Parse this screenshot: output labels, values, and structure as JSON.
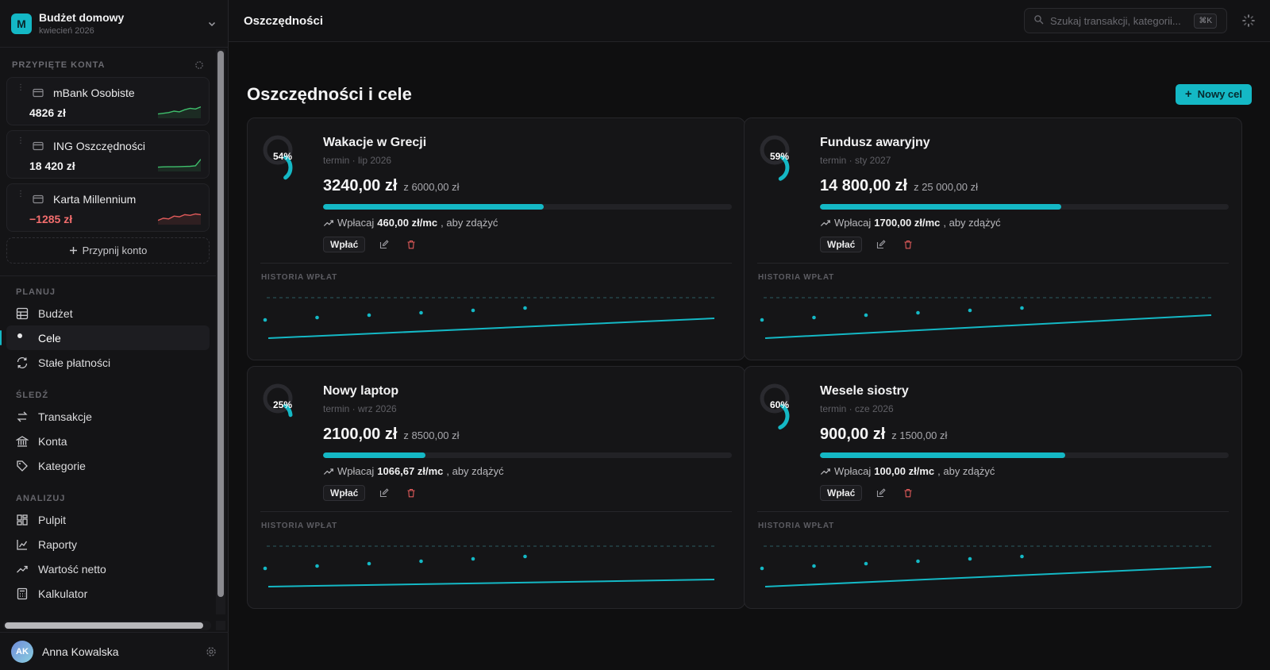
{
  "workspace": {
    "initial": "M",
    "name": "Budżet domowy",
    "period": "kwiecień 2026"
  },
  "sidebar": {
    "pinned_header": "PRZYPIĘTE KONTA",
    "accounts": [
      {
        "name": "mBank Osobiste",
        "balance": "4826 zł",
        "negative": false,
        "trend_color": "#3fbf6c",
        "spark": [
          0.3,
          0.35,
          0.4,
          0.5,
          0.45,
          0.6,
          0.7,
          0.65,
          0.8
        ]
      },
      {
        "name": "ING Oszczędności",
        "balance": "18 420 zł",
        "negative": false,
        "trend_color": "#3fbf6c",
        "spark": [
          0.3,
          0.32,
          0.33,
          0.33,
          0.34,
          0.35,
          0.36,
          0.4,
          0.85
        ]
      },
      {
        "name": "Karta Millennium",
        "balance": "−1285 zł",
        "negative": true,
        "trend_color": "#e05a5a",
        "spark": [
          0.3,
          0.45,
          0.4,
          0.6,
          0.55,
          0.7,
          0.65,
          0.75,
          0.7
        ]
      }
    ],
    "pin_label": "Przypnij konto",
    "sections": [
      {
        "title": "PLANUJ",
        "items": [
          {
            "label": "Budżet",
            "icon": "grid-icon",
            "active": false
          },
          {
            "label": "Cele",
            "icon": "target-icon",
            "active": true
          },
          {
            "label": "Stałe płatności",
            "icon": "repeat-icon",
            "active": false
          }
        ]
      },
      {
        "title": "ŚLEDŹ",
        "items": [
          {
            "label": "Transakcje",
            "icon": "transfer-icon",
            "active": false
          },
          {
            "label": "Konta",
            "icon": "bank-icon",
            "active": false
          },
          {
            "label": "Kategorie",
            "icon": "tag-icon",
            "active": false
          }
        ]
      },
      {
        "title": "ANALIZUJ",
        "items": [
          {
            "label": "Pulpit",
            "icon": "dashboard-icon",
            "active": false
          },
          {
            "label": "Raporty",
            "icon": "chart-line-icon",
            "active": false
          },
          {
            "label": "Wartość netto",
            "icon": "trend-up-icon",
            "active": false
          },
          {
            "label": "Kalkulator",
            "icon": "calculator-icon",
            "active": false
          }
        ]
      }
    ],
    "user": {
      "initials": "AK",
      "name": "Anna Kowalska"
    }
  },
  "topbar": {
    "title": "Oszczędności",
    "search_placeholder": "Szukaj transakcji, kategorii...",
    "shortcut": "⌘K"
  },
  "page": {
    "title": "Oszczędności i cele",
    "new_goal": "Nowy cel"
  },
  "colors": {
    "accent": "#14b8c5",
    "danger": "#e05a5a",
    "positive": "#3fbf6c"
  },
  "goals": [
    {
      "title": "Wakacje w Grecji",
      "due": "termin · lip 2026",
      "current": "3240,00 zł",
      "target": "z 6000,00 zł",
      "percent_label": "54%",
      "progress": 0.54,
      "advice_prefix": "Wpłacaj",
      "monthly": "460,00 zł/mc",
      "advice_suffix": ", aby zdążyć",
      "deposit": "Wpłać",
      "history_label": "HISTORIA WPŁAT"
    },
    {
      "title": "Fundusz awaryjny",
      "due": "termin · sty 2027",
      "current": "14 800,00 zł",
      "target": "z 25 000,00 zł",
      "percent_label": "59%",
      "progress": 0.59,
      "advice_prefix": "Wpłacaj",
      "monthly": "1700,00 zł/mc",
      "advice_suffix": ", aby zdążyć",
      "deposit": "Wpłać",
      "history_label": "HISTORIA WPŁAT"
    },
    {
      "title": "Nowy laptop",
      "due": "termin · wrz 2026",
      "current": "2100,00 zł",
      "target": "z 8500,00 zł",
      "percent_label": "25%",
      "progress": 0.25,
      "advice_prefix": "Wpłacaj",
      "monthly": "1066,67 zł/mc",
      "advice_suffix": ", aby zdążyć",
      "deposit": "Wpłać",
      "history_label": "HISTORIA WPŁAT"
    },
    {
      "title": "Wesele siostry",
      "due": "termin · cze 2026",
      "current": "900,00 zł",
      "target": "z 1500,00 zł",
      "percent_label": "60%",
      "progress": 0.6,
      "advice_prefix": "Wpłacaj",
      "monthly": "100,00 zł/mc",
      "advice_suffix": ", aby zdążyć",
      "deposit": "Wpłać",
      "history_label": "HISTORIA WPŁAT"
    }
  ]
}
